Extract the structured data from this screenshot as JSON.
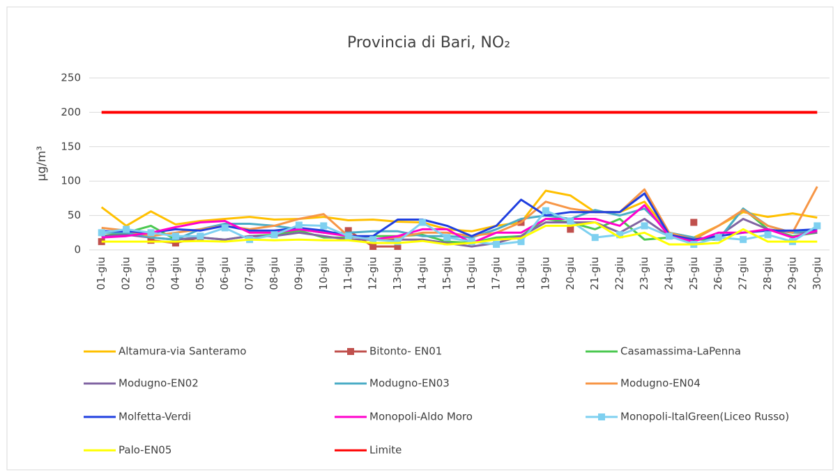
{
  "chart_data": {
    "type": "line",
    "title": "Provincia di Bari, NO₂",
    "y_label": "µg/m³",
    "categories": [
      "01-giu",
      "02-giu",
      "03-giu",
      "04-giu",
      "05-giu",
      "06-giu",
      "07-giu",
      "08-giu",
      "09-giu",
      "10-giu",
      "11-giu",
      "12-giu",
      "13-giu",
      "14-giu",
      "15-giu",
      "16-giu",
      "17-giu",
      "18-giu",
      "19-giu",
      "20-giu",
      "21-giu",
      "22-giu",
      "23-giu",
      "24-giu",
      "25-giu",
      "26-giu",
      "27-giu",
      "28-giu",
      "29-giu",
      "30-giu"
    ],
    "ylim": [
      0,
      250
    ],
    "yticks": [
      0,
      50,
      100,
      150,
      200,
      250
    ],
    "grid": true,
    "legend": "bottom",
    "series": [
      {
        "name": "Altamura-via Santeramo",
        "color": "#ffc000",
        "values": [
          62,
          35,
          56,
          37,
          42,
          45,
          48,
          44,
          45,
          48,
          43,
          44,
          41,
          40,
          30,
          27,
          35,
          40,
          86,
          79,
          55,
          55,
          70,
          25,
          18,
          35,
          55,
          48,
          53,
          47
        ]
      },
      {
        "name": "Bitonto- EN01",
        "color": "#c0504d",
        "marker": "square",
        "values": [
          12,
          null,
          14,
          10,
          18,
          null,
          null,
          null,
          null,
          null,
          28,
          5,
          5,
          null,
          12,
          null,
          null,
          40,
          null,
          30,
          null,
          null,
          null,
          null,
          40,
          null,
          null,
          null,
          null,
          null
        ]
      },
      {
        "name": "Casamassima-LaPenna",
        "color": "#4bc850",
        "values": [
          20,
          25,
          35,
          15,
          18,
          15,
          20,
          22,
          28,
          18,
          18,
          20,
          20,
          22,
          12,
          10,
          18,
          20,
          45,
          40,
          30,
          45,
          15,
          18,
          15,
          15,
          60,
          30,
          20,
          25
        ]
      },
      {
        "name": "Modugno-EN02",
        "color": "#8064a2",
        "values": [
          20,
          22,
          18,
          15,
          18,
          15,
          20,
          20,
          25,
          20,
          15,
          15,
          15,
          15,
          10,
          5,
          10,
          20,
          40,
          40,
          40,
          25,
          45,
          20,
          15,
          20,
          45,
          30,
          25,
          25
        ]
      },
      {
        "name": "Modugno-EN03",
        "color": "#4bacc6",
        "values": [
          25,
          25,
          18,
          15,
          30,
          38,
          38,
          35,
          30,
          25,
          25,
          27,
          27,
          20,
          20,
          18,
          30,
          45,
          50,
          45,
          58,
          50,
          60,
          25,
          18,
          15,
          60,
          35,
          25,
          30
        ]
      },
      {
        "name": "Modugno-EN04",
        "color": "#f79646",
        "values": [
          32,
          28,
          20,
          25,
          30,
          35,
          30,
          35,
          45,
          52,
          20,
          15,
          18,
          25,
          25,
          20,
          25,
          40,
          70,
          60,
          55,
          55,
          88,
          25,
          15,
          35,
          58,
          35,
          25,
          92
        ]
      },
      {
        "name": "Molfetta-Verdi",
        "color": "#1f3fe0",
        "values": [
          27,
          27,
          25,
          30,
          28,
          35,
          28,
          28,
          32,
          28,
          20,
          20,
          44,
          44,
          35,
          20,
          35,
          73,
          50,
          55,
          55,
          55,
          82,
          22,
          15,
          20,
          25,
          28,
          28,
          30
        ]
      },
      {
        "name": "Monopoli-Aldo Moro",
        "color": "#ff00cc",
        "values": [
          18,
          20,
          25,
          33,
          40,
          42,
          25,
          25,
          30,
          25,
          20,
          15,
          20,
          30,
          30,
          10,
          25,
          25,
          45,
          45,
          45,
          35,
          65,
          20,
          12,
          25,
          25,
          30,
          18,
          28
        ]
      },
      {
        "name": "Monopoli-ItalGreen(Liceo Russo)",
        "color": "#7ed0f0",
        "marker": "square",
        "values": [
          25,
          30,
          25,
          20,
          20,
          32,
          15,
          22,
          36,
          35,
          20,
          15,
          12,
          40,
          18,
          12,
          8,
          12,
          57,
          42,
          18,
          22,
          35,
          20,
          8,
          18,
          15,
          22,
          12,
          35
        ]
      },
      {
        "name": "Palo-EN05",
        "color": "#ffff00",
        "values": [
          12,
          12,
          12,
          12,
          13,
          12,
          15,
          14,
          15,
          14,
          14,
          10,
          10,
          13,
          8,
          10,
          15,
          17,
          35,
          35,
          40,
          18,
          25,
          8,
          8,
          10,
          30,
          12,
          12,
          12
        ]
      },
      {
        "name": "Limite",
        "color": "#ff0000",
        "width": 4,
        "values": [
          200,
          200,
          200,
          200,
          200,
          200,
          200,
          200,
          200,
          200,
          200,
          200,
          200,
          200,
          200,
          200,
          200,
          200,
          200,
          200,
          200,
          200,
          200,
          200,
          200,
          200,
          200,
          200,
          200,
          200
        ]
      }
    ]
  }
}
